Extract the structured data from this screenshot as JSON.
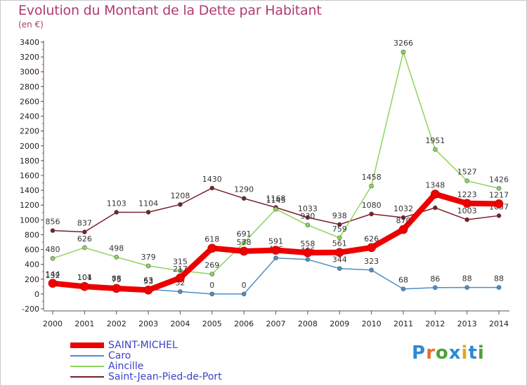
{
  "title": "Evolution du Montant de la Dette par Habitant",
  "unit": "(en €)",
  "logo": {
    "text": "Proxiti",
    "colors": [
      "#2d8ad6",
      "#e8702a",
      "#4aa33a",
      "#2d8ad6",
      "#e3a521",
      "#2d8ad6",
      "#4aa33a"
    ]
  },
  "chart_data": {
    "type": "line",
    "categories": [
      "2000",
      "2001",
      "2002",
      "2003",
      "2004",
      "2005",
      "2006",
      "2007",
      "2008",
      "2009",
      "2010",
      "2011",
      "2012",
      "2013",
      "2014"
    ],
    "ylim": [
      -200,
      3400
    ],
    "yticks": [
      -200,
      0,
      200,
      400,
      600,
      800,
      1000,
      1200,
      1400,
      1600,
      1800,
      2000,
      2200,
      2400,
      2600,
      2800,
      3000,
      3200,
      3400
    ],
    "grid": false,
    "legend_position": "bottom-left",
    "series": [
      {
        "name": "Saint-Jean-Pied-de-Port",
        "color": "#7a1f2b",
        "width": 1.5,
        "values": [
          856,
          837,
          1103,
          1104,
          1208,
          1430,
          1290,
          1168,
          1033,
          938,
          1080,
          1032,
          1164,
          1003,
          1057
        ],
        "labels": [
          "856",
          "837",
          "1103",
          "1104",
          "1208",
          "1430",
          "1290",
          "1168",
          "1033",
          "938",
          "1080",
          "1032",
          "",
          "1003",
          "1057"
        ]
      },
      {
        "name": "Aincille",
        "color": "#8fd45a",
        "width": 1.5,
        "values": [
          480,
          626,
          498,
          379,
          315,
          269,
          691,
          1145,
          930,
          759,
          1458,
          3266,
          1951,
          1527,
          1426
        ],
        "labels": [
          "480",
          "626",
          "498",
          "379",
          "315",
          "269",
          "691",
          "1145",
          "930",
          "759",
          "1458",
          "3266",
          "1951",
          "1527",
          "1426"
        ]
      },
      {
        "name": "Caro",
        "color": "#4d8ec9",
        "width": 1.5,
        "values": [
          132,
          104,
          88,
          63,
          32,
          0,
          0,
          486,
          466,
          344,
          323,
          68,
          86,
          88,
          88
        ],
        "labels": [
          "132",
          "104",
          "88",
          "63",
          "32",
          "0",
          "0",
          "486",
          "466",
          "344",
          "323",
          "68",
          "86",
          "88",
          "88"
        ]
      },
      {
        "name": "SAINT-MICHEL",
        "color": "#ee0000",
        "width": 8,
        "values": [
          144,
          101,
          75,
          53,
          217,
          618,
          578,
          591,
          558,
          561,
          626,
          870,
          1348,
          1223,
          1217
        ],
        "labels": [
          "144",
          "101",
          "75",
          "53",
          "217",
          "618",
          "578",
          "591",
          "558",
          "561",
          "626",
          "870",
          "1348",
          "1223",
          "1217"
        ]
      }
    ]
  },
  "legend": [
    {
      "name": "SAINT-MICHEL",
      "color": "#ee0000",
      "thickness": 8
    },
    {
      "name": "Caro",
      "color": "#4d8ec9",
      "thickness": 2
    },
    {
      "name": "Aincille",
      "color": "#8fd45a",
      "thickness": 2
    },
    {
      "name": "Saint-Jean-Pied-de-Port",
      "color": "#7a1f2b",
      "thickness": 2
    }
  ]
}
